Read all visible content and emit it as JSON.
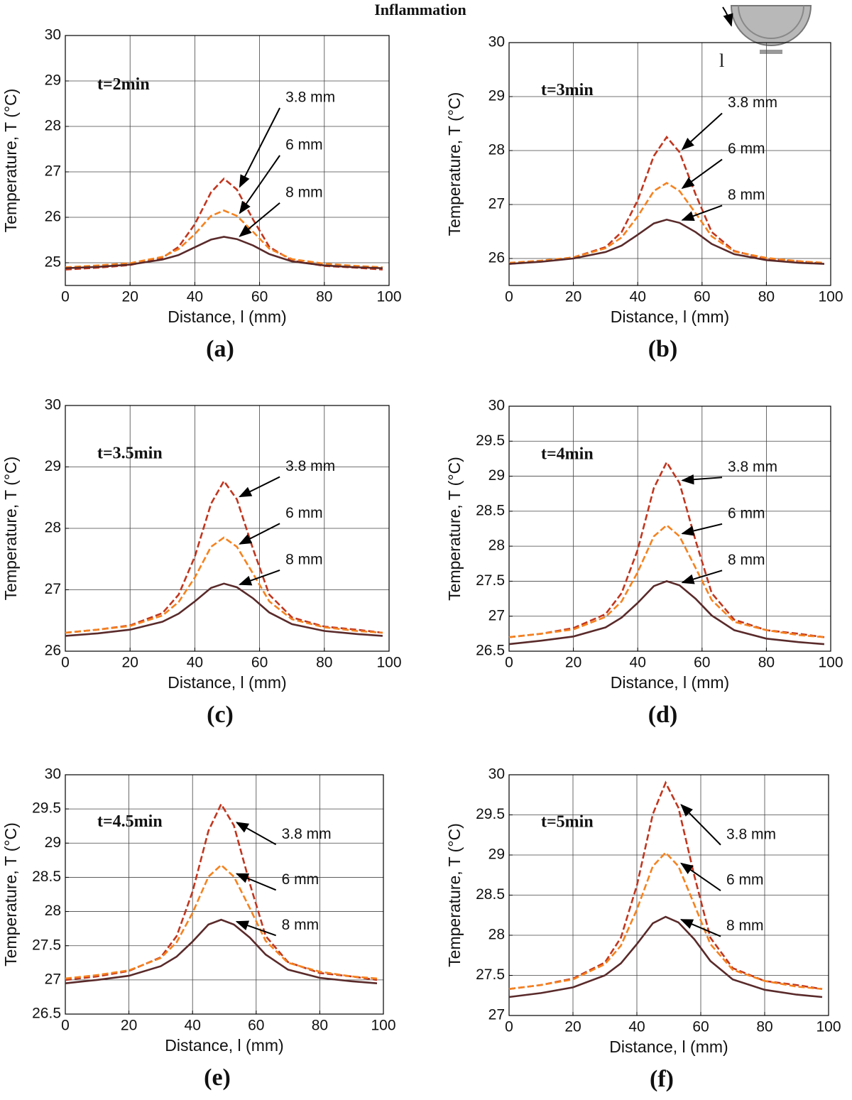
{
  "figure_title": "Inflammation",
  "chart_data": [
    {
      "type": "line",
      "label": "(a)",
      "annotation": "t=2min",
      "xlabel": "Distance, l (mm)",
      "ylabel": "Temperature, T (°C)",
      "x": [
        0,
        10,
        20,
        30,
        35,
        40,
        45,
        49,
        53,
        58,
        63,
        70,
        80,
        90,
        98
      ],
      "xlim": [
        0,
        100
      ],
      "xticks": [
        0,
        20,
        40,
        60,
        80,
        100
      ],
      "ylim": [
        24.5,
        30
      ],
      "yticks": [
        25,
        26,
        27,
        28,
        29,
        30
      ],
      "grid": true,
      "series": [
        {
          "name": "3.8 mm",
          "color": "#c0361f",
          "line_style": "dashed",
          "values": [
            24.85,
            24.89,
            24.95,
            25.11,
            25.35,
            25.85,
            26.55,
            26.85,
            26.61,
            25.95,
            25.35,
            25.05,
            24.93,
            24.89,
            24.85
          ]
        },
        {
          "name": "6 mm",
          "color": "#f5821f",
          "line_style": "dashed",
          "values": [
            24.9,
            24.94,
            24.99,
            25.13,
            25.3,
            25.63,
            26.03,
            26.15,
            26.03,
            25.68,
            25.31,
            25.08,
            24.98,
            24.93,
            24.9
          ]
        },
        {
          "name": "8 mm",
          "color": "#5a2a2a",
          "line_style": "solid",
          "values": [
            24.88,
            24.91,
            24.96,
            25.07,
            25.17,
            25.34,
            25.51,
            25.57,
            25.52,
            25.38,
            25.19,
            25.03,
            24.94,
            24.9,
            24.88
          ]
        }
      ]
    },
    {
      "type": "line",
      "label": "(b)",
      "annotation": "t=3min",
      "inset_label": "l",
      "xlabel": "Distance, l (mm)",
      "ylabel": "Temperature, T (°C)",
      "x": [
        0,
        10,
        20,
        30,
        35,
        40,
        45,
        49,
        53,
        58,
        63,
        70,
        80,
        90,
        98
      ],
      "xlim": [
        0,
        100
      ],
      "xticks": [
        0,
        20,
        40,
        60,
        80,
        100
      ],
      "ylim": [
        25.5,
        30
      ],
      "yticks": [
        26,
        27,
        28,
        29,
        30
      ],
      "grid": true,
      "series": [
        {
          "name": "3.8 mm",
          "color": "#c0361f",
          "line_style": "dashed",
          "values": [
            25.9,
            25.95,
            26.02,
            26.21,
            26.49,
            27.08,
            27.9,
            28.25,
            27.97,
            27.19,
            26.49,
            26.14,
            25.99,
            25.95,
            25.9
          ]
        },
        {
          "name": "6 mm",
          "color": "#f5821f",
          "line_style": "dashed",
          "values": [
            25.92,
            25.96,
            26.02,
            26.19,
            26.39,
            26.78,
            27.25,
            27.4,
            27.25,
            26.84,
            26.41,
            26.13,
            26.01,
            25.95,
            25.92
          ]
        },
        {
          "name": "8 mm",
          "color": "#5a2a2a",
          "line_style": "solid",
          "values": [
            25.9,
            25.94,
            26.0,
            26.12,
            26.24,
            26.44,
            26.65,
            26.72,
            26.66,
            26.49,
            26.27,
            26.08,
            25.97,
            25.92,
            25.9
          ]
        }
      ]
    },
    {
      "type": "line",
      "label": "(c)",
      "annotation": "t=3.5min",
      "xlabel": "Distance, l (mm)",
      "ylabel": "Temperature, T (°C)",
      "x": [
        0,
        10,
        20,
        30,
        35,
        40,
        45,
        49,
        53,
        58,
        63,
        70,
        80,
        90,
        98
      ],
      "xlim": [
        0,
        100
      ],
      "xticks": [
        0,
        20,
        40,
        60,
        80,
        100
      ],
      "ylim": [
        26,
        30
      ],
      "yticks": [
        26,
        27,
        28,
        29,
        30
      ],
      "grid": true,
      "series": [
        {
          "name": "3.8 mm",
          "color": "#c0361f",
          "line_style": "dashed",
          "values": [
            26.3,
            26.35,
            26.42,
            26.62,
            26.92,
            27.54,
            28.4,
            28.77,
            28.47,
            27.66,
            26.92,
            26.55,
            26.4,
            26.35,
            26.3
          ]
        },
        {
          "name": "6 mm",
          "color": "#f5821f",
          "line_style": "dashed",
          "values": [
            26.3,
            26.35,
            26.41,
            26.58,
            26.8,
            27.2,
            27.7,
            27.85,
            27.7,
            27.26,
            26.81,
            26.52,
            26.39,
            26.33,
            26.3
          ]
        },
        {
          "name": "8 mm",
          "color": "#5a2a2a",
          "line_style": "solid",
          "values": [
            26.25,
            26.29,
            26.35,
            26.48,
            26.61,
            26.81,
            27.03,
            27.1,
            27.04,
            26.86,
            26.63,
            26.44,
            26.33,
            26.28,
            26.25
          ]
        }
      ]
    },
    {
      "type": "line",
      "label": "(d)",
      "annotation": "t=4min",
      "xlabel": "Distance, l (mm)",
      "ylabel": "Temperature, T (°C)",
      "x": [
        0,
        10,
        20,
        30,
        35,
        40,
        45,
        49,
        53,
        58,
        63,
        70,
        80,
        90,
        98
      ],
      "xlim": [
        0,
        100
      ],
      "xticks": [
        0,
        20,
        40,
        60,
        80,
        100
      ],
      "ylim": [
        26.5,
        30
      ],
      "yticks": [
        26.5,
        27,
        27.5,
        28,
        28.5,
        29,
        29.5,
        30
      ],
      "grid": true,
      "series": [
        {
          "name": "3.8 mm",
          "color": "#c0361f",
          "line_style": "dashed",
          "values": [
            26.7,
            26.75,
            26.83,
            27.03,
            27.33,
            27.95,
            28.83,
            29.2,
            28.9,
            28.08,
            27.33,
            26.95,
            26.8,
            26.75,
            26.7
          ]
        },
        {
          "name": "6 mm",
          "color": "#f5821f",
          "line_style": "dashed",
          "values": [
            26.7,
            26.75,
            26.81,
            26.99,
            27.21,
            27.63,
            28.14,
            28.3,
            28.14,
            27.69,
            27.23,
            26.92,
            26.8,
            26.73,
            26.7
          ]
        },
        {
          "name": "8 mm",
          "color": "#5a2a2a",
          "line_style": "solid",
          "values": [
            26.6,
            26.65,
            26.71,
            26.84,
            26.98,
            27.19,
            27.43,
            27.5,
            27.44,
            27.25,
            27.01,
            26.8,
            26.68,
            26.63,
            26.6
          ]
        }
      ]
    },
    {
      "type": "line",
      "label": "(e)",
      "annotation": "t=4.5min",
      "xlabel": "Distance, l (mm)",
      "ylabel": "Temperature, T (°C)",
      "x": [
        0,
        10,
        20,
        30,
        35,
        40,
        45,
        49,
        53,
        58,
        63,
        70,
        80,
        90,
        98
      ],
      "xlim": [
        0,
        100
      ],
      "xticks": [
        0,
        20,
        40,
        60,
        80,
        100
      ],
      "ylim": [
        26.5,
        30
      ],
      "yticks": [
        26.5,
        27,
        27.5,
        28,
        28.5,
        29,
        29.5,
        30
      ],
      "grid": true,
      "series": [
        {
          "name": "3.8 mm",
          "color": "#c0361f",
          "line_style": "dashed",
          "values": [
            27.0,
            27.05,
            27.13,
            27.33,
            27.64,
            28.29,
            29.18,
            29.57,
            29.26,
            28.41,
            27.64,
            27.26,
            27.1,
            27.05,
            27.0
          ]
        },
        {
          "name": "6 mm",
          "color": "#f5821f",
          "line_style": "dashed",
          "values": [
            27.02,
            27.07,
            27.14,
            27.32,
            27.55,
            27.98,
            28.51,
            28.68,
            28.51,
            28.05,
            27.57,
            27.25,
            27.12,
            27.05,
            27.02
          ]
        },
        {
          "name": "8 mm",
          "color": "#5a2a2a",
          "line_style": "solid",
          "values": [
            26.95,
            27.0,
            27.06,
            27.2,
            27.34,
            27.56,
            27.81,
            27.88,
            27.81,
            27.62,
            27.37,
            27.15,
            27.03,
            26.98,
            26.95
          ]
        }
      ]
    },
    {
      "type": "line",
      "label": "(f)",
      "annotation": "t=5min",
      "xlabel": "Distance, l (mm)",
      "ylabel": "Temperature, T (°C)",
      "x": [
        0,
        10,
        20,
        30,
        35,
        40,
        45,
        49,
        53,
        58,
        63,
        70,
        80,
        90,
        98
      ],
      "xlim": [
        0,
        100
      ],
      "xticks": [
        0,
        20,
        40,
        60,
        80,
        100
      ],
      "ylim": [
        27,
        30
      ],
      "yticks": [
        27,
        27.5,
        28,
        28.5,
        29,
        29.5,
        30
      ],
      "grid": true,
      "series": [
        {
          "name": "3.8 mm",
          "color": "#c0361f",
          "line_style": "dashed",
          "values": [
            27.33,
            27.38,
            27.46,
            27.66,
            27.97,
            28.62,
            29.51,
            29.9,
            29.59,
            28.74,
            27.97,
            27.59,
            27.43,
            27.38,
            27.33
          ]
        },
        {
          "name": "6 mm",
          "color": "#f5821f",
          "line_style": "dashed",
          "values": [
            27.33,
            27.38,
            27.45,
            27.64,
            27.87,
            28.32,
            28.86,
            29.03,
            28.86,
            28.38,
            27.89,
            27.57,
            27.43,
            27.36,
            27.33
          ]
        },
        {
          "name": "8 mm",
          "color": "#5a2a2a",
          "line_style": "solid",
          "values": [
            27.23,
            27.28,
            27.35,
            27.5,
            27.65,
            27.89,
            28.15,
            28.23,
            28.16,
            27.95,
            27.68,
            27.45,
            27.32,
            27.26,
            27.23
          ]
        }
      ]
    }
  ]
}
